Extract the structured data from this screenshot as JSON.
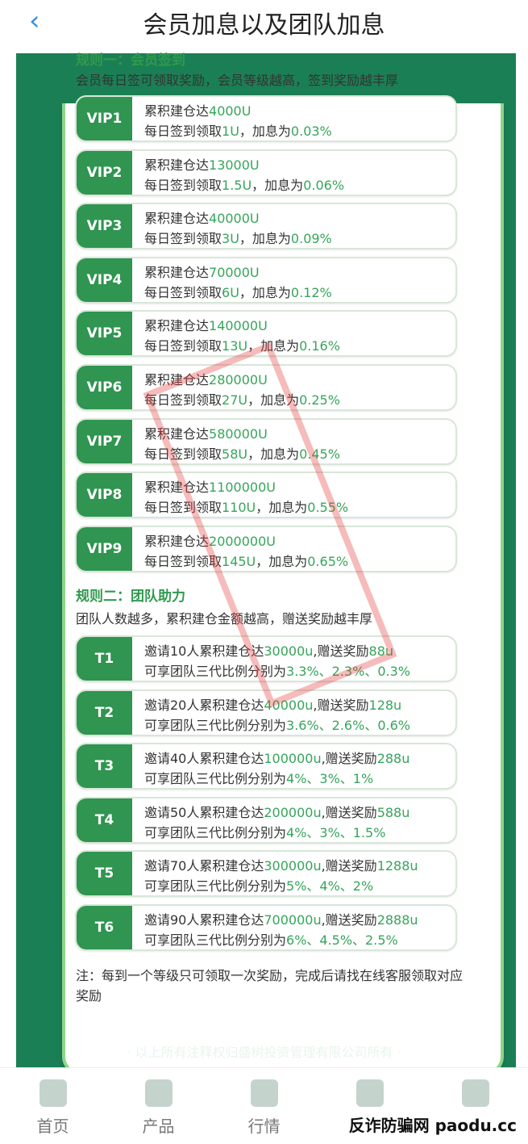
{
  "header": {
    "back": "‹",
    "title": "会员加息以及团队加息"
  },
  "rule1": {
    "title": "规则一：会员签到",
    "desc": "会员每日签可领取奖励，会员等级越高，签到奖励越丰厚",
    "items": [
      {
        "tag": "VIP1",
        "a": "累积建仓达",
        "amt": "4000U",
        "b": "每日签到领取",
        "reward": "1U",
        "c": "，加息为",
        "rate": "0.03%"
      },
      {
        "tag": "VIP2",
        "a": "累积建仓达",
        "amt": "13000U",
        "b": "每日签到领取",
        "reward": "1.5U",
        "c": "，加息为",
        "rate": "0.06%"
      },
      {
        "tag": "VIP3",
        "a": "累积建仓达",
        "amt": "40000U",
        "b": "每日签到领取",
        "reward": "3U",
        "c": "，加息为",
        "rate": "0.09%"
      },
      {
        "tag": "VIP4",
        "a": "累积建仓达",
        "amt": "70000U",
        "b": "每日签到领取",
        "reward": "6U",
        "c": "，加息为",
        "rate": "0.12%"
      },
      {
        "tag": "VIP5",
        "a": "累积建仓达",
        "amt": "140000U",
        "b": "每日签到领取",
        "reward": "13U",
        "c": "，加息为",
        "rate": "0.16%"
      },
      {
        "tag": "VIP6",
        "a": "累积建仓达",
        "amt": "280000U",
        "b": "每日签到领取",
        "reward": "27U",
        "c": "，加息为",
        "rate": "0.25%"
      },
      {
        "tag": "VIP7",
        "a": "累积建仓达",
        "amt": "580000U",
        "b": "每日签到领取",
        "reward": "58U",
        "c": "，加息为",
        "rate": "0.45%"
      },
      {
        "tag": "VIP8",
        "a": "累积建仓达",
        "amt": "1100000U",
        "b": "每日签到领取",
        "reward": "110U",
        "c": "，加息为",
        "rate": "0.55%"
      },
      {
        "tag": "VIP9",
        "a": "累积建仓达",
        "amt": "2000000U",
        "b": "每日签到领取",
        "reward": "145U",
        "c": "，加息为",
        "rate": "0.65%"
      }
    ]
  },
  "rule2": {
    "title": "规则二：团队助力",
    "desc": "团队人数越多，累积建仓金额越高，赠送奖励越丰厚",
    "items": [
      {
        "tag": "T1",
        "a": "邀请10人累积建仓达",
        "amt": "30000u",
        "b": ",赠送奖励",
        "bonus": "88u",
        "c": "可享团队三代比例分别为",
        "rates": "3.3%、2.3%、0.3%"
      },
      {
        "tag": "T2",
        "a": "邀请20人累积建仓达",
        "amt": "40000u",
        "b": ",赠送奖励",
        "bonus": "128u",
        "c": "可享团队三代比例分别为",
        "rates": "3.6%、2.6%、0.6%"
      },
      {
        "tag": "T3",
        "a": "邀请40人累积建仓达",
        "amt": "100000u",
        "b": ",赠送奖励",
        "bonus": "288u",
        "c": "可享团队三代比例分别为",
        "rates": "4%、3%、1%"
      },
      {
        "tag": "T4",
        "a": "邀请50人累积建仓达",
        "amt": "200000u",
        "b": ",赠送奖励",
        "bonus": "588u",
        "c": "可享团队三代比例分别为",
        "rates": "4%、3%、1.5%"
      },
      {
        "tag": "T5",
        "a": "邀请70人累积建仓达",
        "amt": "300000u",
        "b": ",赠送奖励",
        "bonus": "1288u",
        "c": "可享团队三代比例分别为",
        "rates": "5%、4%、2%"
      },
      {
        "tag": "T6",
        "a": "邀请90人累积建仓达",
        "amt": "700000u",
        "b": ",赠送奖励",
        "bonus": "2888u",
        "c": "可享团队三代比例分别为",
        "rates": "6%、4.5%、2.5%"
      }
    ]
  },
  "note": "注：每到一个等级只可领取一次奖励，完成后请找在线客服领取对应奖励",
  "footer": "· 以上所有注释权归盛树投资管理有限公司所有 ·",
  "nav": [
    {
      "label": "首页",
      "icon": "home-icon"
    },
    {
      "label": "产品",
      "icon": "product-icon"
    },
    {
      "label": "行情",
      "icon": "chart-icon"
    },
    {
      "label": "",
      "icon": "news-icon"
    },
    {
      "label": "",
      "icon": "user-icon"
    }
  ],
  "watermark": "反诈防骗网 paodu.cc"
}
